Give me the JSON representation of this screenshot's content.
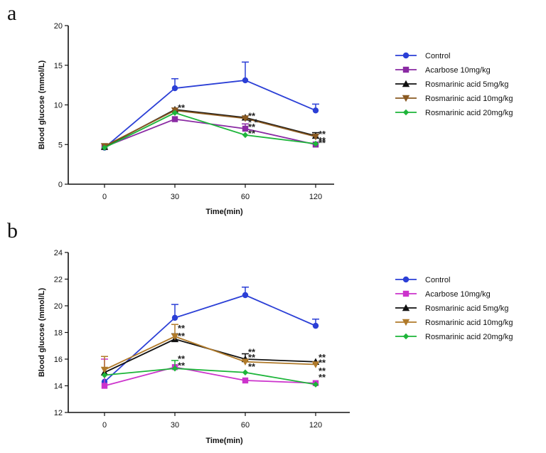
{
  "chart_data": [
    {
      "panel_label": "a",
      "type": "line",
      "xlabel": "Time(min)",
      "ylabel": "Blood glucose (mmol/L)",
      "x": [
        "0",
        "30",
        "60",
        "120"
      ],
      "yticks": [
        "0",
        "5",
        "10",
        "15",
        "20"
      ],
      "ylim": [
        0,
        20
      ],
      "grid": false,
      "legend": "right",
      "series": [
        {
          "name": "Control",
          "color": "#2b3fd6",
          "marker": "circle",
          "values": [
            4.6,
            12.1,
            13.1,
            9.3
          ],
          "err": [
            0,
            1.2,
            2.3,
            0.8
          ]
        },
        {
          "name": "Acarbose 10mg/kg",
          "color": "#8a2aa3",
          "marker": "square",
          "values": [
            4.7,
            8.2,
            7.0,
            5.0
          ],
          "err": [
            0,
            0,
            0.6,
            0
          ]
        },
        {
          "name": "Rosmarinic acid 5mg/kg",
          "color": "#111111",
          "marker": "triangle-up",
          "values": [
            4.7,
            9.4,
            8.4,
            6.1
          ],
          "err": [
            0,
            0,
            0,
            0.4
          ]
        },
        {
          "name": "Rosmarinic acid 10mg/kg",
          "color": "#8a5a22",
          "marker": "triangle-down",
          "values": [
            4.8,
            9.3,
            8.3,
            6.0
          ],
          "err": [
            0,
            0,
            0,
            0
          ]
        },
        {
          "name": "Rosmarinic acid 20mg/kg",
          "color": "#1db53a",
          "marker": "diamond",
          "values": [
            4.6,
            9.0,
            6.2,
            5.1
          ],
          "err": [
            0,
            0,
            0,
            0
          ]
        }
      ],
      "annotations": [
        {
          "x": "30",
          "y": 9.4,
          "text": "**"
        },
        {
          "x": "60",
          "y": 8.4,
          "text": "**"
        },
        {
          "x": "60",
          "y": 8.4,
          "text": "* *"
        },
        {
          "x": "60",
          "y": 7.0,
          "text": "**"
        },
        {
          "x": "60",
          "y": 6.2,
          "text": "**"
        },
        {
          "x": "120",
          "y": 6.1,
          "text": "**"
        },
        {
          "x": "120",
          "y": 6.1,
          "text": "**"
        },
        {
          "x": "120",
          "y": 5.0,
          "text": "**"
        }
      ]
    },
    {
      "panel_label": "b",
      "type": "line",
      "xlabel": "Time(min)",
      "ylabel": "Blood glucose (mmol/L)",
      "x": [
        "0",
        "30",
        "60",
        "120"
      ],
      "yticks": [
        "12",
        "14",
        "16",
        "18",
        "20",
        "22",
        "24"
      ],
      "ylim": [
        12,
        24
      ],
      "grid": false,
      "legend": "right",
      "series": [
        {
          "name": "Control",
          "color": "#2b3fd6",
          "marker": "circle",
          "values": [
            14.3,
            19.1,
            20.8,
            18.5
          ],
          "err": [
            0,
            1.0,
            0.6,
            0.5
          ]
        },
        {
          "name": "Acarbose 10mg/kg",
          "color": "#cc33cc",
          "marker": "square",
          "values": [
            14.0,
            15.4,
            14.4,
            14.2
          ],
          "err": [
            2.0,
            0,
            0,
            0
          ]
        },
        {
          "name": "Rosmarinic acid 5mg/kg",
          "color": "#111111",
          "marker": "triangle-up",
          "values": [
            15.0,
            17.5,
            16.0,
            15.8
          ],
          "err": [
            0,
            0.4,
            0.4,
            0
          ]
        },
        {
          "name": "Rosmarinic acid 10mg/kg",
          "color": "#b07a2a",
          "marker": "triangle-down",
          "values": [
            15.2,
            17.7,
            15.8,
            15.6
          ],
          "err": [
            1.0,
            0.9,
            0,
            0
          ]
        },
        {
          "name": "Rosmarinic acid 20mg/kg",
          "color": "#1db53a",
          "marker": "diamond",
          "values": [
            14.8,
            15.3,
            15.0,
            14.1
          ],
          "err": [
            0,
            0.6,
            0,
            0
          ]
        }
      ],
      "annotations": [
        {
          "x": "30",
          "y": 18.2,
          "text": "**"
        },
        {
          "x": "30",
          "y": 17.6,
          "text": "**"
        },
        {
          "x": "30",
          "y": 15.9,
          "text": "**"
        },
        {
          "x": "30",
          "y": 15.4,
          "text": "**"
        },
        {
          "x": "60",
          "y": 16.4,
          "text": "**"
        },
        {
          "x": "60",
          "y": 16.0,
          "text": "**"
        },
        {
          "x": "60",
          "y": 15.3,
          "text": "**"
        },
        {
          "x": "120",
          "y": 16.0,
          "text": "**"
        },
        {
          "x": "120",
          "y": 15.6,
          "text": "**"
        },
        {
          "x": "120",
          "y": 15.0,
          "text": "**"
        },
        {
          "x": "120",
          "y": 14.5,
          "text": "**"
        }
      ]
    }
  ]
}
